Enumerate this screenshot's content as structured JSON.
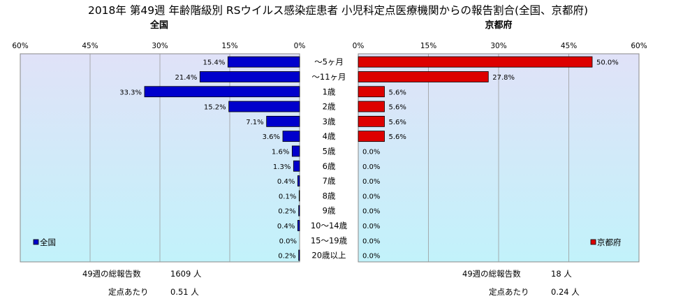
{
  "chart_data": {
    "type": "bar",
    "orientation": "horizontal",
    "title": "2018年 第49週 年齢階級別 RSウイルス感染症患者 小児科定点医療機関からの報告割合(全国、京都府)",
    "categories": [
      "～5ヶ月",
      "～11ヶ月",
      "1歳",
      "2歳",
      "3歳",
      "4歳",
      "5歳",
      "6歳",
      "7歳",
      "8歳",
      "9歳",
      "10～14歳",
      "15～19歳",
      "20歳以上"
    ],
    "xlim": [
      0,
      60
    ],
    "ticks": [
      "60%",
      "45%",
      "30%",
      "15%",
      "0%"
    ],
    "ticks_right": [
      "0%",
      "15%",
      "30%",
      "45%",
      "60%"
    ],
    "grid": true,
    "panels": [
      {
        "name": "全国",
        "subtitle": "全国",
        "legend": "全国",
        "legend_position": "bottom-left",
        "direction": "left",
        "color": "#0000cc",
        "values": [
          15.4,
          21.4,
          33.3,
          15.2,
          7.1,
          3.6,
          1.6,
          1.3,
          0.4,
          0.1,
          0.2,
          0.4,
          0.0,
          0.2
        ],
        "labels": [
          "15.4%",
          "21.4%",
          "33.3%",
          "15.2%",
          "7.1%",
          "3.6%",
          "1.6%",
          "1.3%",
          "0.4%",
          "0.1%",
          "0.2%",
          "0.4%",
          "0.0%",
          "0.2%"
        ],
        "footer": {
          "weekly_label": "49週の総報告数",
          "weekly_value": "1609 人",
          "per_label": "定点あたり",
          "per_value": "0.51 人"
        }
      },
      {
        "name": "京都府",
        "subtitle": "京都府",
        "legend": "京都府",
        "legend_position": "bottom-right",
        "direction": "right",
        "color": "#dd0000",
        "values": [
          50.0,
          27.8,
          5.6,
          5.6,
          5.6,
          5.6,
          0.0,
          0.0,
          0.0,
          0.0,
          0.0,
          0.0,
          0.0,
          0.0
        ],
        "labels": [
          "50.0%",
          "27.8%",
          "5.6%",
          "5.6%",
          "5.6%",
          "5.6%",
          "0.0%",
          "0.0%",
          "0.0%",
          "0.0%",
          "0.0%",
          "0.0%",
          "0.0%",
          "0.0%"
        ],
        "footer": {
          "weekly_label": "49週の総報告数",
          "weekly_value": "18 人",
          "per_label": "定点あたり",
          "per_value": "0.24 人"
        }
      }
    ]
  },
  "colors": {
    "plot_bg_top": "#e0e2f8",
    "plot_bg_bottom": "#c2f2fa",
    "grid": "#9a9a9a"
  }
}
